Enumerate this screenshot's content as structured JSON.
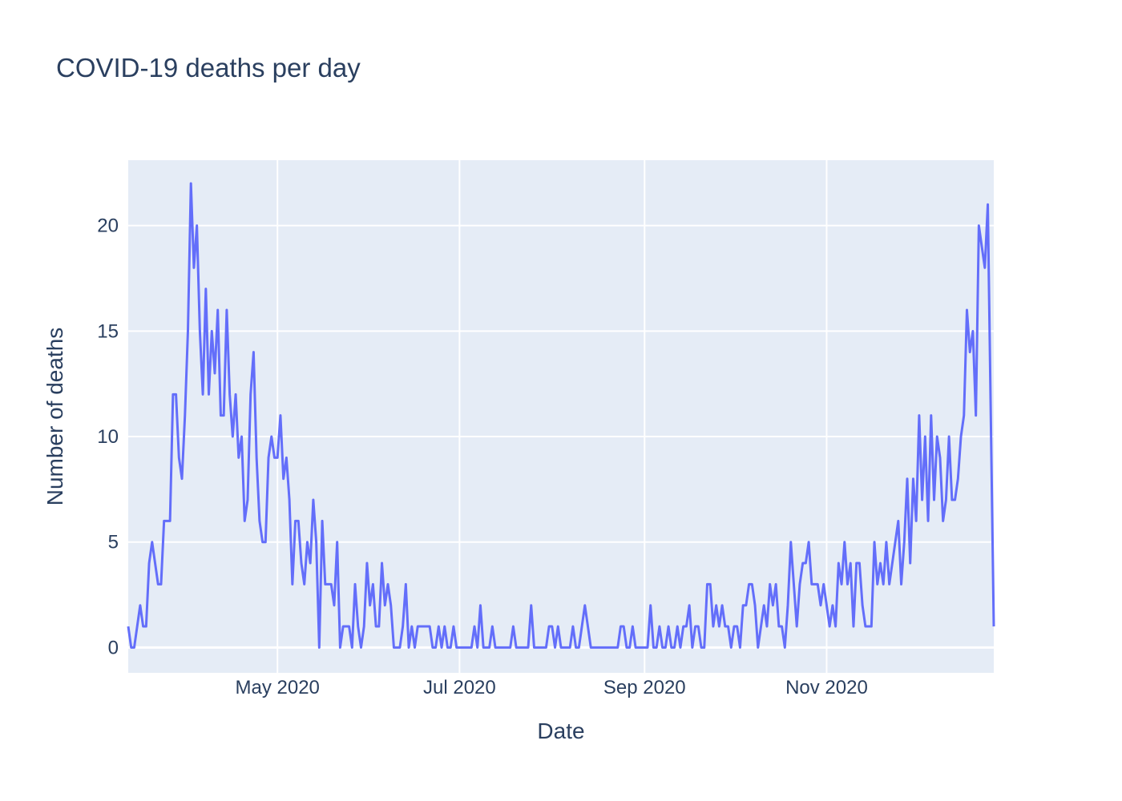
{
  "chart_data": {
    "type": "line",
    "title": "COVID-19 deaths per day",
    "xlabel": "Date",
    "ylabel": "Number of deaths",
    "x_axis_type": "date",
    "xlim": [
      "2020-03-12",
      "2020-12-27"
    ],
    "ylim": [
      -1.2,
      23.1
    ],
    "x_ticks": [
      {
        "date": "2020-05-01",
        "label": "May 2020"
      },
      {
        "date": "2020-07-01",
        "label": "Jul 2020"
      },
      {
        "date": "2020-09-01",
        "label": "Sep 2020"
      },
      {
        "date": "2020-11-01",
        "label": "Nov 2020"
      }
    ],
    "y_ticks": [
      0,
      5,
      10,
      15,
      20
    ],
    "grid": true,
    "line_color": "#636efa",
    "plot_bg": "#e5ecf6",
    "series": [
      {
        "start_date": "2020-03-12",
        "frequency": "daily",
        "values": [
          1,
          0,
          0,
          1,
          2,
          1,
          1,
          4,
          5,
          4,
          3,
          3,
          6,
          6,
          6,
          12,
          12,
          9,
          8,
          11,
          15,
          22,
          18,
          20,
          15,
          12,
          17,
          12,
          15,
          13,
          16,
          11,
          11,
          16,
          12,
          10,
          12,
          9,
          10,
          6,
          7,
          12,
          14,
          9,
          6,
          5,
          5,
          9,
          10,
          9,
          9,
          11,
          8,
          9,
          7,
          3,
          6,
          6,
          4,
          3,
          5,
          4,
          7,
          5,
          0,
          6,
          3,
          3,
          3,
          2,
          5,
          0,
          1,
          1,
          1,
          0,
          3,
          1,
          0,
          1,
          4,
          2,
          3,
          1,
          1,
          4,
          2,
          3,
          2,
          0,
          0,
          0,
          1,
          3,
          0,
          1,
          0,
          1,
          1,
          1,
          1,
          1,
          0,
          0,
          1,
          0,
          1,
          0,
          0,
          1,
          0,
          0,
          0,
          0,
          0,
          0,
          1,
          0,
          2,
          0,
          0,
          0,
          1,
          0,
          0,
          0,
          0,
          0,
          0,
          1,
          0,
          0,
          0,
          0,
          0,
          2,
          0,
          0,
          0,
          0,
          0,
          1,
          1,
          0,
          1,
          0,
          0,
          0,
          0,
          1,
          0,
          0,
          1,
          2,
          1,
          0,
          0,
          0,
          0,
          0,
          0,
          0,
          0,
          0,
          0,
          1,
          1,
          0,
          0,
          1,
          0,
          0,
          0,
          0,
          0,
          2,
          0,
          0,
          1,
          0,
          0,
          1,
          0,
          0,
          1,
          0,
          1,
          1,
          2,
          0,
          1,
          1,
          0,
          0,
          3,
          3,
          1,
          2,
          1,
          2,
          1,
          1,
          0,
          1,
          1,
          0,
          2,
          2,
          3,
          3,
          2,
          0,
          1,
          2,
          1,
          3,
          2,
          3,
          1,
          1,
          0,
          2,
          5,
          3,
          1,
          3,
          4,
          4,
          5,
          3,
          3,
          3,
          2,
          3,
          2,
          1,
          2,
          1,
          4,
          3,
          5,
          3,
          4,
          1,
          4,
          4,
          2,
          1,
          1,
          1,
          5,
          3,
          4,
          3,
          5,
          3,
          4,
          5,
          6,
          3,
          5,
          8,
          4,
          8,
          6,
          11,
          7,
          10,
          6,
          11,
          7,
          10,
          9,
          6,
          7,
          10,
          7,
          7,
          8,
          10,
          11,
          16,
          14,
          15,
          11,
          20,
          19,
          18,
          21,
          11,
          1
        ]
      }
    ]
  }
}
